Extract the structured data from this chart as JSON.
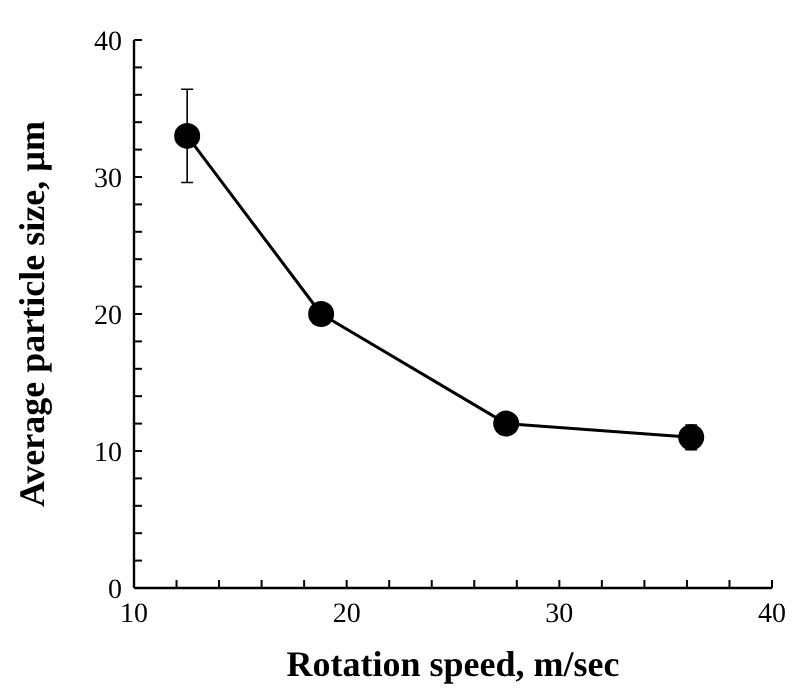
{
  "chart_data": {
    "type": "line",
    "xlabel": "Rotation speed, m/sec",
    "ylabel": "Average particle size, µm",
    "x": [
      12.5,
      18.8,
      27.5,
      36.2
    ],
    "series": [
      {
        "color": "#000000",
        "values": [
          33,
          20,
          12,
          11
        ],
        "errors": [
          3.4,
          null,
          null,
          0.9
        ]
      }
    ],
    "marker": "circle",
    "line_style": "solid",
    "grid": false,
    "xlim": [
      10,
      40
    ],
    "xticks": [
      10,
      {
        "value": 12,
        "label": null
      },
      {
        "value": 14,
        "label": null
      },
      {
        "value": 16,
        "label": null
      },
      {
        "value": 18,
        "label": null
      },
      20,
      {
        "value": 22,
        "label": null
      },
      {
        "value": 24,
        "label": null
      },
      {
        "value": 26,
        "label": null
      },
      {
        "value": 28,
        "label": null
      },
      30,
      {
        "value": 32,
        "label": null
      },
      {
        "value": 34,
        "label": null
      },
      {
        "value": 36,
        "label": null
      },
      {
        "value": 38,
        "label": null
      },
      40
    ],
    "ylim": [
      0,
      40
    ],
    "yticks": [
      0,
      {
        "value": 2,
        "label": null
      },
      {
        "value": 4,
        "label": null
      },
      {
        "value": 6,
        "label": null
      },
      {
        "value": 8,
        "label": null
      },
      10,
      {
        "value": 12,
        "label": null
      },
      {
        "value": 14,
        "label": null
      },
      {
        "value": 16,
        "label": null
      },
      {
        "value": 18,
        "label": null
      },
      20,
      {
        "value": 22,
        "label": null
      },
      {
        "value": 24,
        "label": null
      },
      {
        "value": 26,
        "label": null
      },
      {
        "value": 28,
        "label": null
      },
      30,
      {
        "value": 32,
        "label": null
      },
      {
        "value": 34,
        "label": null
      },
      {
        "value": 36,
        "label": null
      },
      {
        "value": 38,
        "label": null
      },
      40
    ]
  }
}
